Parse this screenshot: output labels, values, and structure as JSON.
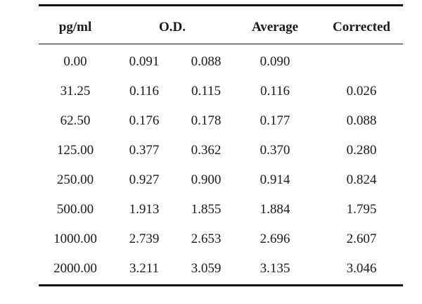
{
  "table": {
    "headers": {
      "concentration": "pg/ml",
      "od": "O.D.",
      "average": "Average",
      "corrected": "Corrected"
    },
    "rows": [
      {
        "concentration": "0.00",
        "od1": "0.091",
        "od2": "0.088",
        "average": "0.090",
        "corrected": ""
      },
      {
        "concentration": "31.25",
        "od1": "0.116",
        "od2": "0.115",
        "average": "0.116",
        "corrected": "0.026"
      },
      {
        "concentration": "62.50",
        "od1": "0.176",
        "od2": "0.178",
        "average": "0.177",
        "corrected": "0.088"
      },
      {
        "concentration": "125.00",
        "od1": "0.377",
        "od2": "0.362",
        "average": "0.370",
        "corrected": "0.280"
      },
      {
        "concentration": "250.00",
        "od1": "0.927",
        "od2": "0.900",
        "average": "0.914",
        "corrected": "0.824"
      },
      {
        "concentration": "500.00",
        "od1": "1.913",
        "od2": "1.855",
        "average": "1.884",
        "corrected": "1.795"
      },
      {
        "concentration": "1000.00",
        "od1": "2.739",
        "od2": "2.653",
        "average": "2.696",
        "corrected": "2.607"
      },
      {
        "concentration": "2000.00",
        "od1": "3.211",
        "od2": "3.059",
        "average": "3.135",
        "corrected": "3.046"
      }
    ]
  }
}
